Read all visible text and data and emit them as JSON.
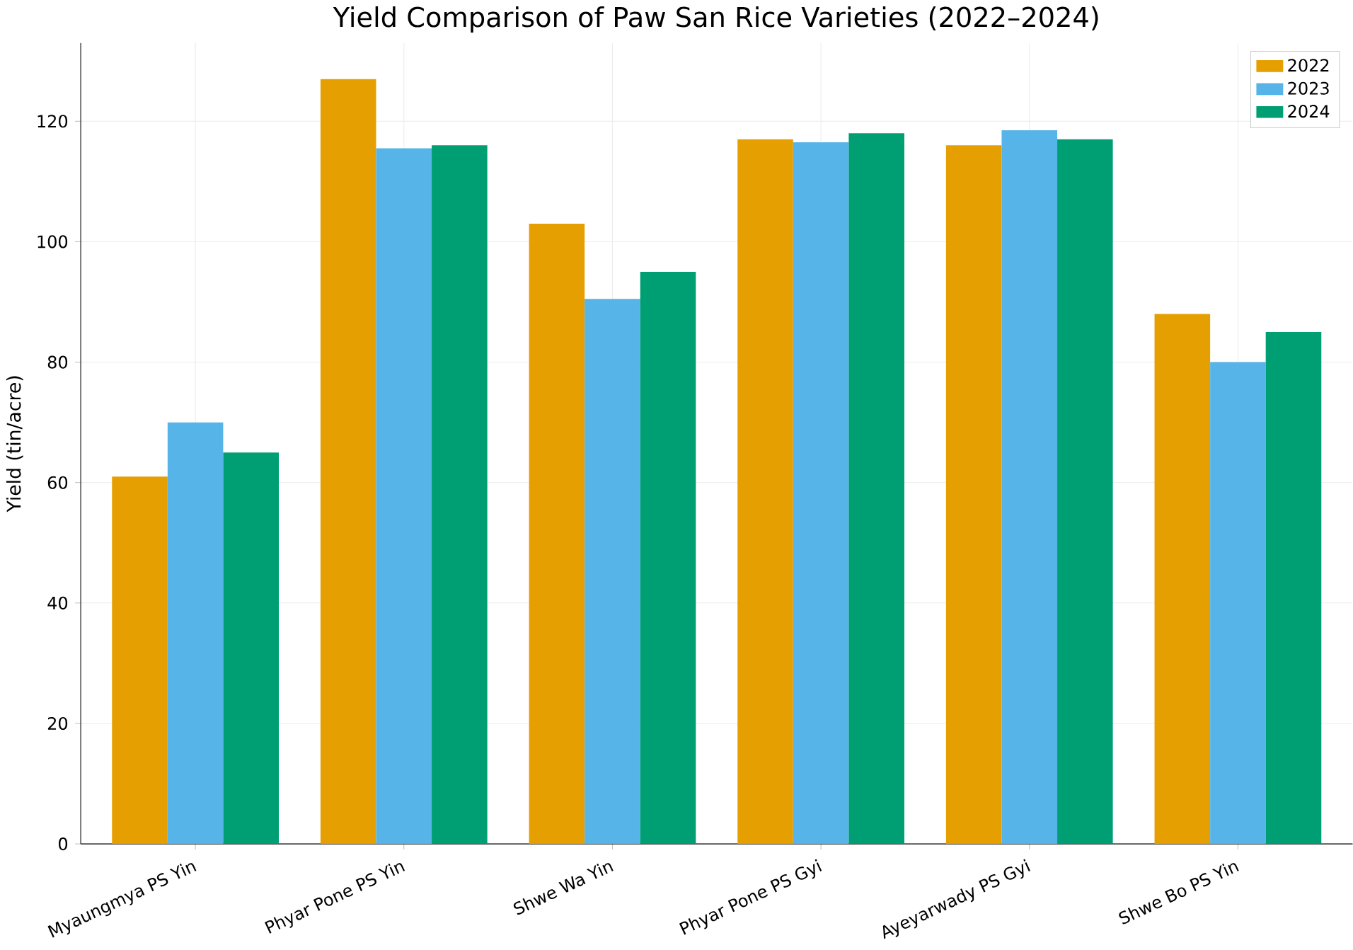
{
  "chart_data": {
    "type": "bar",
    "title": "Yield Comparison of Paw San Rice Varieties (2022–2024)",
    "ylabel": "Yield (tin/acre)",
    "categories": [
      "Myaungmya PS Yin",
      "Phyar Pone PS Yin",
      "Shwe Wa Yin",
      "Phyar Pone PS Gyi",
      "Ayeyarwady PS Gyi",
      "Shwe Bo PS Yin"
    ],
    "series": [
      {
        "name": "2022",
        "color": "#e69f00",
        "values": [
          61,
          127,
          103,
          117,
          116,
          88
        ]
      },
      {
        "name": "2023",
        "color": "#56b4e9",
        "values": [
          70,
          115.5,
          90.5,
          116.5,
          118.5,
          80
        ]
      },
      {
        "name": "2024",
        "color": "#009e73",
        "values": [
          65,
          116,
          95,
          118,
          117,
          85
        ]
      }
    ],
    "ylim": [
      0,
      133
    ],
    "yticks": [
      0,
      20,
      40,
      60,
      80,
      100,
      120
    ],
    "grid": true,
    "legend": "top right"
  }
}
